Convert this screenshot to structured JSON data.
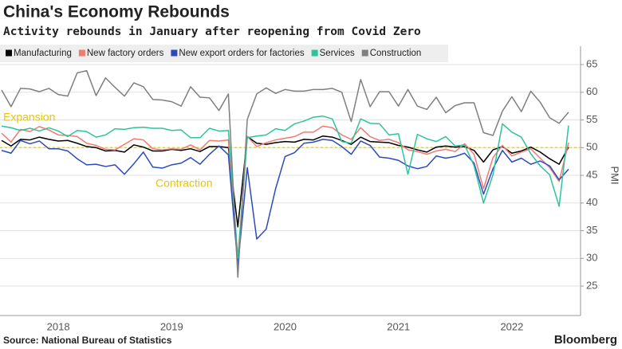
{
  "chart_data": {
    "type": "line",
    "title": "China's Economy Rebounds",
    "subtitle": "Activity rebounds in January after reopening from Covid Zero",
    "y_label": "PMI",
    "source": "Source: National Bureau of Statistics",
    "brand": "Bloomberg",
    "annotations": [
      "Expansion",
      "Contraction"
    ],
    "reference_line": 50,
    "reference_color": "#f2d21b",
    "categories": [
      null,
      null,
      null,
      null,
      null,
      null,
      "2018",
      null,
      null,
      null,
      null,
      null,
      null,
      null,
      null,
      null,
      null,
      null,
      "2019",
      null,
      null,
      null,
      null,
      null,
      null,
      null,
      null,
      null,
      null,
      null,
      "2020",
      null,
      null,
      null,
      null,
      null,
      null,
      null,
      null,
      null,
      null,
      null,
      "2021",
      null,
      null,
      null,
      null,
      null,
      null,
      null,
      null,
      null,
      null,
      null,
      "2022",
      null,
      null,
      null,
      null,
      null,
      null
    ],
    "series": [
      {
        "name": "Manufacturing",
        "color": "#000000",
        "values": [
          51.3,
          50.3,
          51.5,
          51.4,
          51.9,
          51.5,
          51.2,
          51.3,
          50.8,
          50.2,
          50.0,
          49.4,
          49.5,
          49.2,
          50.5,
          50.1,
          49.4,
          49.4,
          49.7,
          49.5,
          49.8,
          49.3,
          50.2,
          50.2,
          50.0,
          35.7,
          52.0,
          50.8,
          50.6,
          50.9,
          51.1,
          51.0,
          51.5,
          51.4,
          52.1,
          51.9,
          51.3,
          50.6,
          51.9,
          51.1,
          51.0,
          50.9,
          50.4,
          50.1,
          49.6,
          49.2,
          50.1,
          50.3,
          50.1,
          50.2,
          49.5,
          47.4,
          49.6,
          50.2,
          49.0,
          49.4,
          50.1,
          49.2,
          48.0,
          47.0,
          50.1
        ]
      },
      {
        "name": "New factory orders",
        "color": "#ef7b73",
        "values": [
          52.6,
          51.0,
          53.3,
          52.9,
          53.8,
          53.2,
          52.3,
          52.2,
          52.0,
          50.8,
          50.4,
          49.7,
          49.6,
          50.6,
          51.6,
          51.4,
          49.8,
          49.6,
          49.8,
          49.7,
          50.5,
          49.6,
          51.3,
          51.2,
          51.4,
          29.3,
          52.0,
          50.2,
          50.9,
          51.4,
          51.7,
          52.0,
          52.8,
          52.8,
          53.9,
          53.6,
          52.3,
          51.5,
          53.6,
          52.0,
          51.3,
          51.5,
          50.9,
          49.6,
          49.3,
          48.8,
          49.4,
          49.7,
          49.3,
          50.7,
          48.8,
          42.6,
          48.2,
          50.4,
          48.5,
          49.2,
          49.8,
          48.1,
          46.4,
          43.9,
          50.9
        ]
      },
      {
        "name": "New export orders for factories",
        "color": "#2b4bbd",
        "values": [
          49.5,
          49.0,
          51.3,
          50.7,
          51.2,
          49.8,
          49.8,
          49.4,
          48.0,
          46.9,
          47.0,
          46.6,
          46.9,
          45.2,
          47.1,
          49.2,
          46.5,
          46.3,
          46.9,
          47.2,
          48.2,
          47.0,
          48.8,
          50.3,
          48.7,
          28.7,
          46.4,
          33.5,
          35.3,
          42.6,
          48.4,
          49.1,
          50.8,
          51.0,
          51.5,
          51.3,
          50.2,
          48.8,
          51.2,
          50.4,
          48.3,
          48.1,
          47.7,
          46.7,
          46.2,
          46.6,
          48.5,
          48.1,
          48.4,
          49.0,
          47.2,
          41.6,
          46.2,
          49.5,
          47.4,
          48.1,
          47.0,
          47.6,
          46.7,
          44.2,
          46.1
        ]
      },
      {
        "name": "Services",
        "color": "#2ec39c",
        "values": [
          53.9,
          53.6,
          53.1,
          53.5,
          53.0,
          53.6,
          53.0,
          52.0,
          53.1,
          52.9,
          51.9,
          52.3,
          53.4,
          53.3,
          53.6,
          53.7,
          53.5,
          53.5,
          53.1,
          53.2,
          51.8,
          51.8,
          53.5,
          53.0,
          53.1,
          30.1,
          51.8,
          52.1,
          52.3,
          53.4,
          53.1,
          54.3,
          54.8,
          55.5,
          55.7,
          55.2,
          51.1,
          50.8,
          55.2,
          54.4,
          54.3,
          52.3,
          52.5,
          45.2,
          52.4,
          51.6,
          51.1,
          52.0,
          50.3,
          50.5,
          46.7,
          40.0,
          45.1,
          54.3,
          52.8,
          51.9,
          48.9,
          46.7,
          45.1,
          39.4,
          54.0
        ]
      },
      {
        "name": "Construction",
        "color": "#7f7f7f",
        "values": [
          60.4,
          57.4,
          60.7,
          60.6,
          60.1,
          60.7,
          59.6,
          59.3,
          63.5,
          63.9,
          59.4,
          62.6,
          60.9,
          59.3,
          61.7,
          61.0,
          58.7,
          58.6,
          58.3,
          57.5,
          61.0,
          59.1,
          59.0,
          56.7,
          59.7,
          26.6,
          55.1,
          59.7,
          60.8,
          59.8,
          60.5,
          60.2,
          60.2,
          60.5,
          60.5,
          60.7,
          60.0,
          54.7,
          62.3,
          57.4,
          60.1,
          60.1,
          57.5,
          60.5,
          57.5,
          56.9,
          59.1,
          56.3,
          57.6,
          58.1,
          58.1,
          52.7,
          52.2,
          56.6,
          59.2,
          56.5,
          60.2,
          58.2,
          55.4,
          54.4,
          56.4
        ]
      }
    ],
    "ylim": [
      20,
      68
    ],
    "yticks": [
      25,
      30,
      35,
      40,
      45,
      50,
      55,
      60,
      65
    ],
    "y_axis_side": "right",
    "grid": true,
    "legend_position": "top"
  }
}
